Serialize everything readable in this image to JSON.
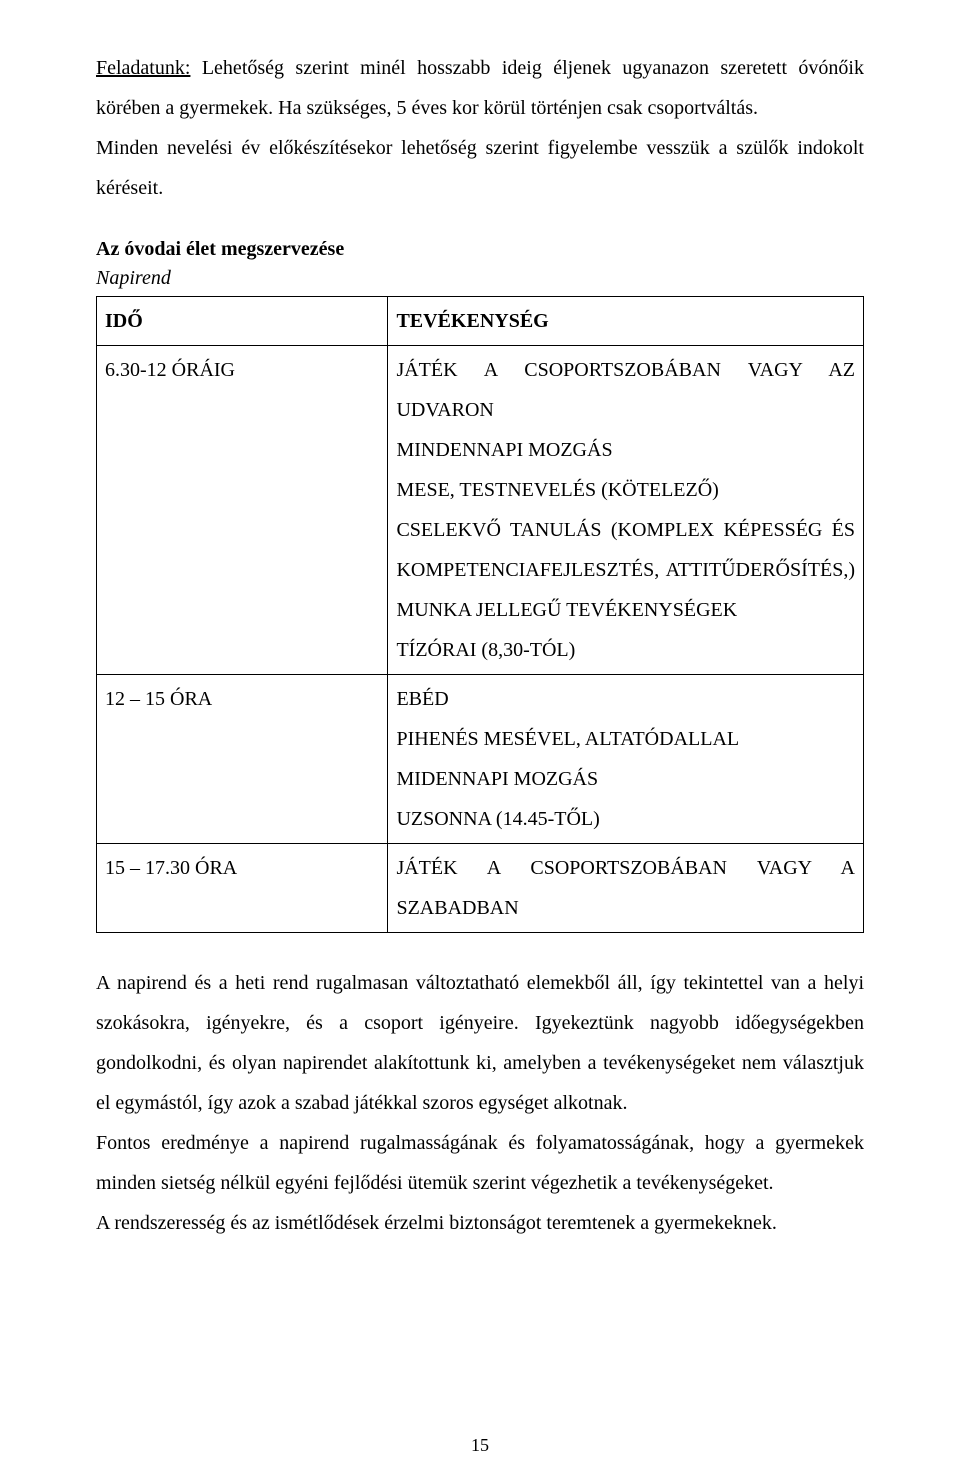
{
  "intro": {
    "task_label": "Feladatunk:",
    "task_text": " Lehetőség szerint minél hosszabb ideig éljenek ugyanazon szeretett óvónőik körében a gyermekek. Ha szükséges, 5 éves kor körül történjen csak csoportváltás.",
    "prep_text": "Minden nevelési év előkészítésekor lehetőség szerint figyelembe vesszük a szülők indokolt kéréseit."
  },
  "heading": "Az óvodai élet megszervezése",
  "subheading": "Napirend",
  "table": {
    "header_time": "IDŐ",
    "header_activity": "TEVÉKENYSÉG",
    "rows": [
      {
        "time": "6.30-12 ÓRÁIG",
        "activity": "JÁTÉK A CSOPORTSZOBÁBAN VAGY AZ UDVARON\nMINDENNAPI MOZGÁS\nMESE, TESTNEVELÉS (KÖTELEZŐ)\nCSELEKVŐ TANULÁS (KOMPLEX KÉPESSÉG ÉS KOMPETENCIAFEJLESZTÉS, ATTITŰDERŐSÍTÉS,) MUNKA JELLEGŰ TEVÉKENYSÉGEK\nTÍZÓRAI (8,30-TÓL)"
      },
      {
        "time": "12 – 15 ÓRA",
        "activity": "EBÉD\nPIHENÉS MESÉVEL, ALTATÓDALLAL\nMIDENNAPI MOZGÁS\nUZSONNA (14.45-TŐL)"
      },
      {
        "time": "15 – 17.30 ÓRA",
        "activity": "JÁTÉK A CSOPORTSZOBÁBAN VAGY A SZABADBAN"
      }
    ]
  },
  "body": {
    "p1": "A napirend és a heti rend rugalmasan változtatható elemekből áll, így tekintettel van a helyi szokásokra, igényekre, és a csoport igényeire. Igyekeztünk nagyobb időegységekben gondolkodni, és olyan napirendet alakítottunk ki, amelyben a tevékenységeket nem választjuk el egymástól, így azok a szabad játékkal szoros egységet alkotnak.",
    "p2": "Fontos eredménye a napirend rugalmasságának és folyamatosságának, hogy a gyermekek minden sietség nélkül egyéni fejlődési ütemük szerint végezhetik a tevékenységeket.",
    "p3": "A rendszeresség és az ismétlődések érzelmi biztonságot teremtenek a gyermekeknek."
  },
  "page_number": "15"
}
